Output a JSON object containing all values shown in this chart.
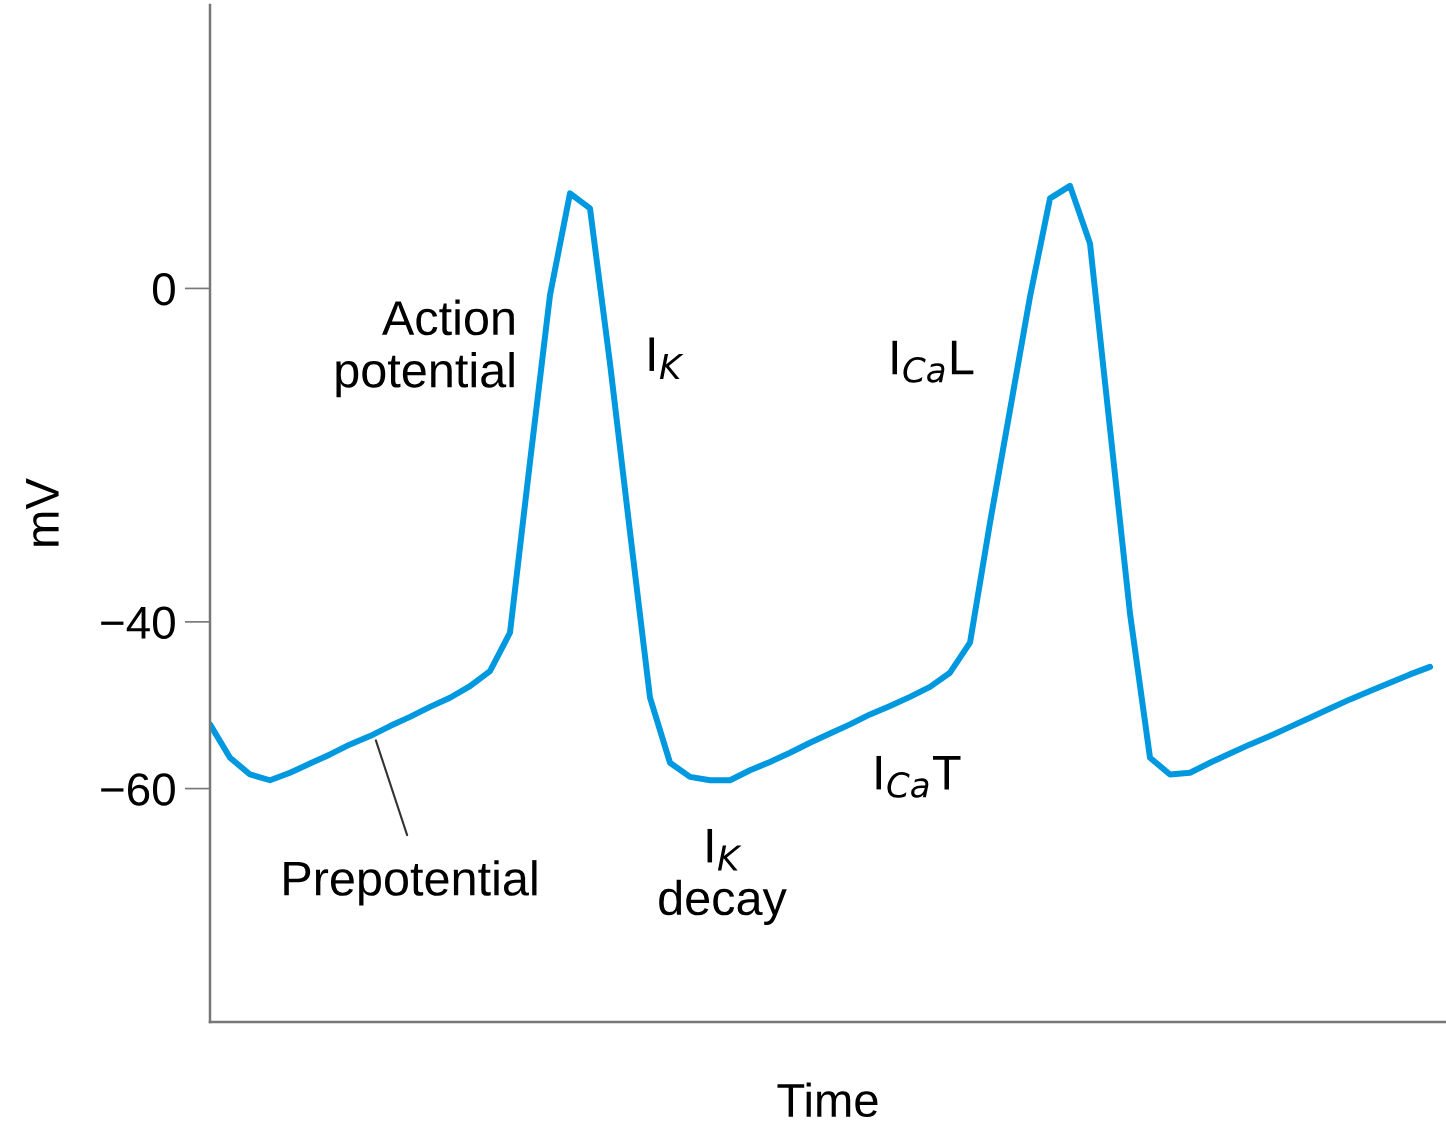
{
  "chart_data": {
    "type": "line",
    "xlabel": "Time",
    "ylabel": "mV",
    "categories": [
      null,
      null,
      null,
      null,
      null,
      null,
      null,
      null,
      null,
      null,
      null,
      null,
      null,
      null,
      null,
      null,
      null,
      null,
      null,
      null,
      null,
      null,
      null,
      null,
      null,
      null,
      null,
      null,
      null,
      null,
      null,
      null,
      null,
      null,
      null,
      null,
      null,
      null,
      null,
      null,
      null,
      null,
      null,
      null,
      null,
      null,
      null,
      null,
      null,
      null,
      null,
      null,
      null,
      null,
      null,
      null,
      null,
      null,
      null,
      null,
      null,
      null
    ],
    "series": [
      {
        "color": "#0099e0",
        "values": [
          -52.3,
          -56.3,
          -58.3,
          -59.0,
          -58.1,
          -57.0,
          -55.9,
          -54.7,
          -53.7,
          -52.5,
          -51.4,
          -50.2,
          -49.1,
          -47.7,
          -45.9,
          -41.3,
          -20.8,
          -0.8,
          11.4,
          9.6,
          -9.0,
          -29.2,
          -49.1,
          -56.9,
          -58.6,
          -59.0,
          -59.0,
          -57.8,
          -56.8,
          -55.7,
          -54.5,
          -53.4,
          -52.3,
          -51.1,
          -50.1,
          -49.0,
          -47.8,
          -46.1,
          -42.5,
          -28.1,
          -14.6,
          -1.0,
          10.8,
          12.3,
          5.4,
          -16.8,
          -39.0,
          -56.3,
          -58.3,
          -58.1,
          -56.9,
          -55.8,
          -54.7,
          -53.7,
          -52.6,
          -51.5,
          -50.4,
          -49.3,
          -48.3,
          -47.3,
          -46.3,
          -45.4
        ]
      }
    ],
    "ylim": [
      -88,
      34
    ],
    "yticks": [
      0,
      {
        "value": -40,
        "label": "−40"
      },
      {
        "value": -60,
        "label": "−60"
      }
    ],
    "grid": false,
    "legend": false,
    "marker": "none",
    "line_style": "solid",
    "annotations": [
      "Action\npotential",
      "I$_{K}$",
      "I$_{Ca}$L",
      "Prepotential",
      "I$_{K}$\ndecay",
      "I$_{Ca}$T"
    ]
  }
}
